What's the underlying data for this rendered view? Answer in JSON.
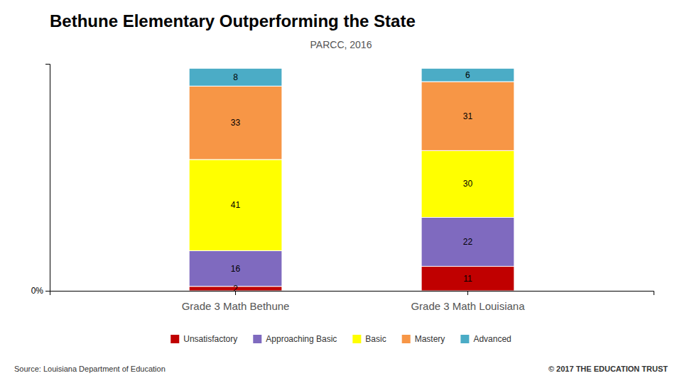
{
  "chart_data": {
    "type": "bar",
    "title": "Bethune Elementary Outperforming the State",
    "subtitle": "PARCC, 2016",
    "categories": [
      "Grade 3 Math Bethune",
      "Grade 3 Math Louisiana"
    ],
    "series": [
      {
        "name": "Unsatisfactory",
        "color": "#c00000",
        "values": [
          2,
          11
        ]
      },
      {
        "name": "Approaching Basic",
        "color": "#7f6abf",
        "values": [
          16,
          22
        ]
      },
      {
        "name": "Basic",
        "color": "#ffff00",
        "values": [
          41,
          30
        ]
      },
      {
        "name": "Mastery",
        "color": "#f79646",
        "values": [
          33,
          31
        ]
      },
      {
        "name": "Advanced",
        "color": "#4bacc6",
        "values": [
          8,
          6
        ]
      }
    ],
    "stacked": true,
    "data_labels": true,
    "ylim": [
      0,
      102
    ],
    "yticks": [
      {
        "value": 0,
        "label": "0%"
      }
    ],
    "grid": false,
    "legend": "bottom",
    "annotations": [
      "Source: Louisiana Department of Education",
      "© 2017 THE EDUCATION TRUST"
    ]
  }
}
